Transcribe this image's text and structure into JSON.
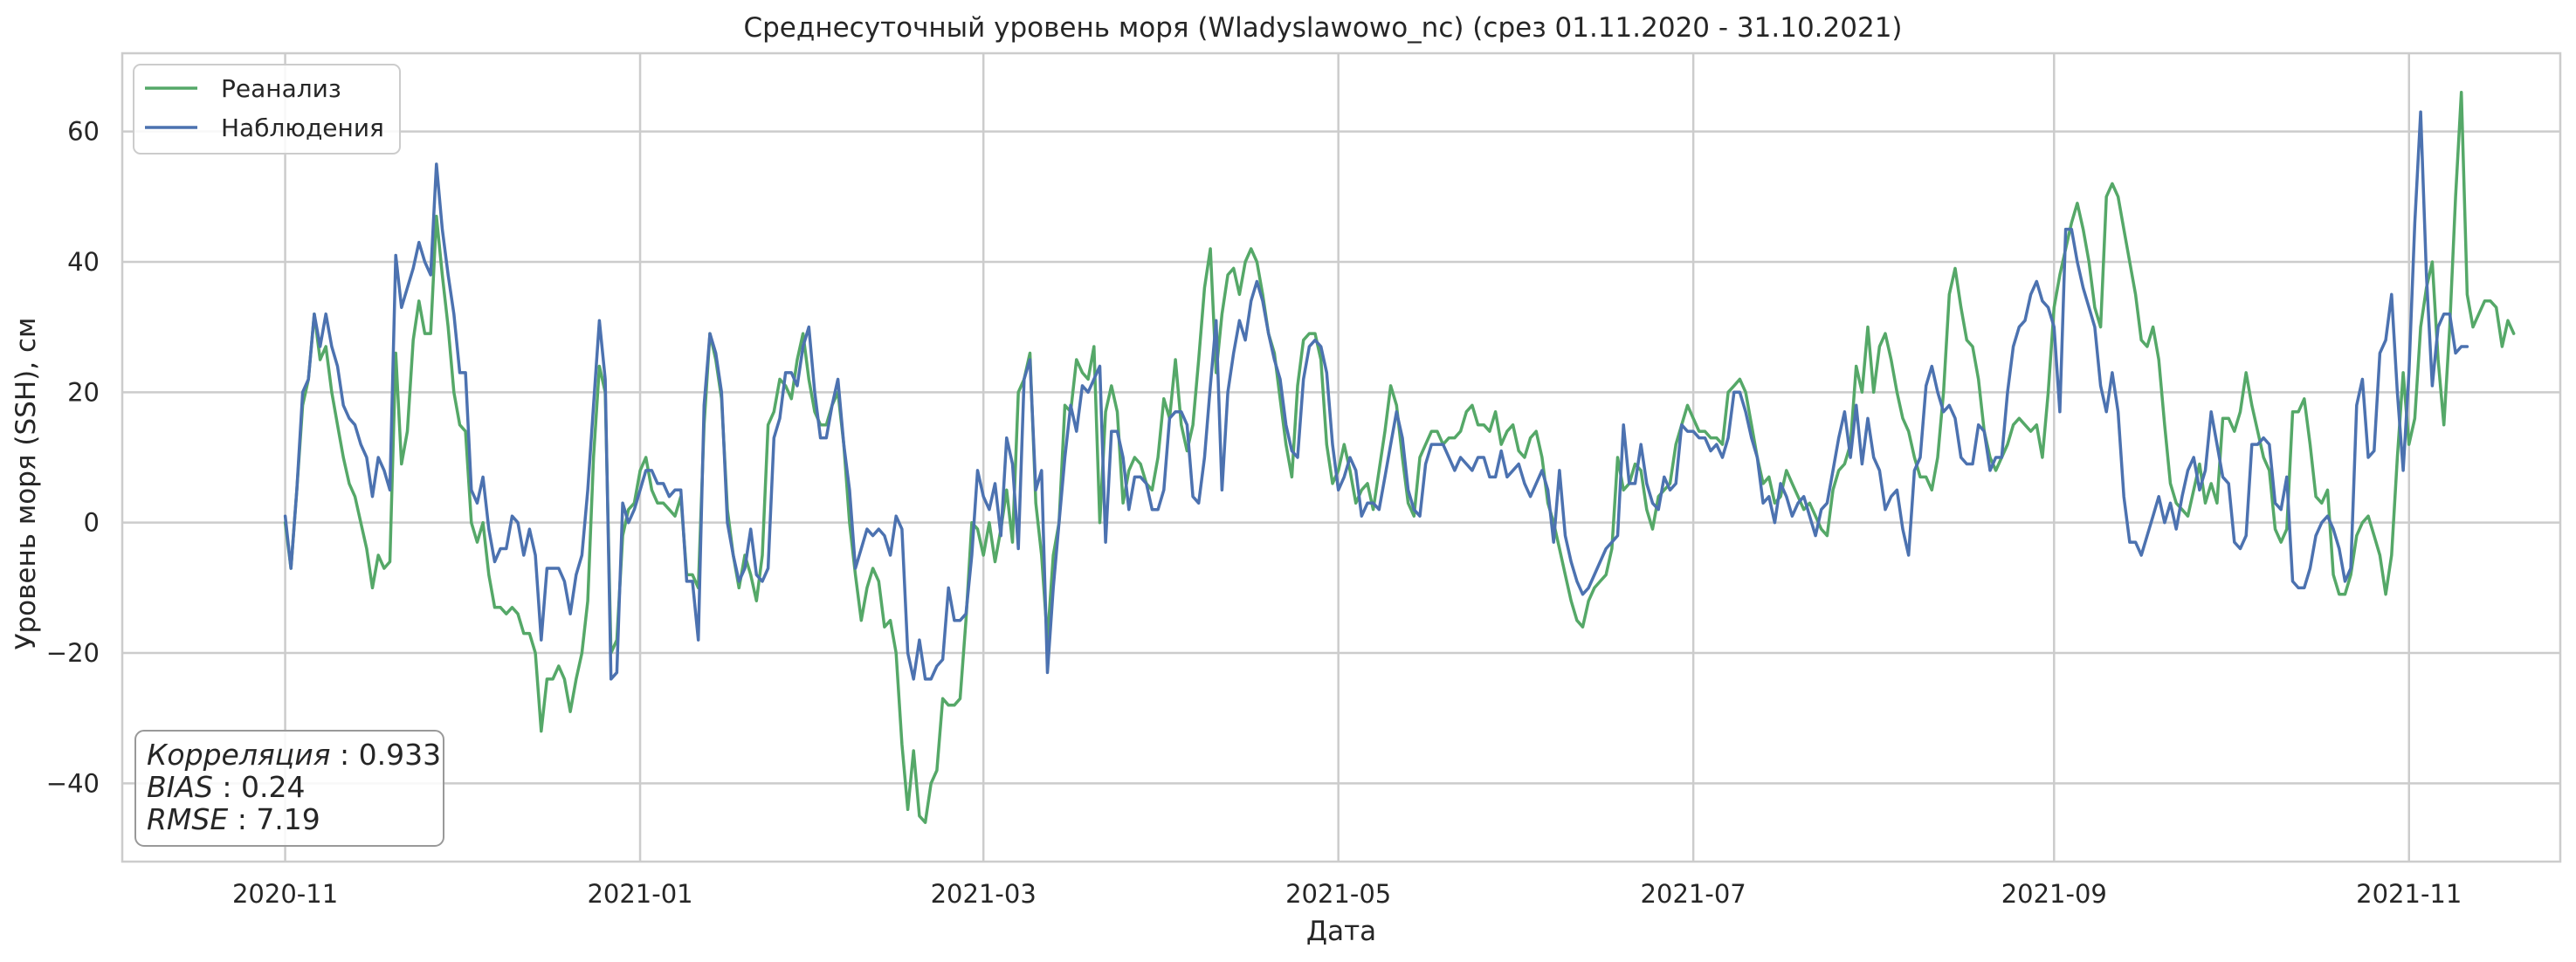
{
  "chart_data": {
    "type": "line",
    "title": "Среднесуточный уровень моря (Wladyslawowo_nc) (срез 01.11.2020 - 31.10.2021)",
    "xlabel": "Дата",
    "ylabel": "Уровень моря (SSH), см",
    "xlim": [
      "2020-10-04",
      "2021-11-27"
    ],
    "ylim": [
      -52,
      72
    ],
    "x_ticks": [
      "2020-11-01",
      "2021-01-01",
      "2021-03-01",
      "2021-05-01",
      "2021-07-01",
      "2021-09-01",
      "2021-11-01"
    ],
    "x_tick_labels": [
      "2020-11",
      "2021-01",
      "2021-03",
      "2021-05",
      "2021-07",
      "2021-09",
      "2021-11"
    ],
    "y_ticks": [
      -40,
      -20,
      0,
      20,
      40,
      60
    ],
    "y_tick_labels": [
      "−40",
      "−20",
      "0",
      "20",
      "40",
      "60"
    ],
    "grid": true,
    "legend_position": "top-left",
    "start_date": "2020-11-01",
    "series": [
      {
        "name": "Реанализ",
        "color": "#55a868",
        "values": [
          0,
          -7,
          5,
          18,
          22,
          32,
          25,
          27,
          20,
          15,
          10,
          6,
          4,
          0,
          -4,
          -10,
          -5,
          -7,
          -6,
          26,
          9,
          14,
          28,
          34,
          29,
          29,
          47,
          38,
          30,
          20,
          15,
          14,
          0,
          -3,
          0,
          -8,
          -13,
          -13,
          -14,
          -13,
          -14,
          -17,
          -17,
          -20,
          -32,
          -24,
          -24,
          -22,
          -24,
          -29,
          -24,
          -20,
          -12,
          10,
          24,
          20,
          -20,
          -18,
          -2,
          2,
          3,
          8,
          10,
          5,
          3,
          3,
          2,
          1,
          4,
          -8,
          -8,
          -10,
          15,
          29,
          25,
          19,
          2,
          -5,
          -10,
          -5,
          -8,
          -12,
          -5,
          15,
          17,
          22,
          21,
          19,
          25,
          29,
          22,
          17,
          15,
          15,
          18,
          20,
          12,
          0,
          -8,
          -15,
          -10,
          -7,
          -9,
          -16,
          -15,
          -20,
          -34,
          -44,
          -35,
          -45,
          -46,
          -40,
          -38,
          -27,
          -28,
          -28,
          -27,
          -15,
          0,
          -1,
          -5,
          0,
          -6,
          -1,
          5,
          -3,
          20,
          22,
          26,
          3,
          -5,
          -18,
          -5,
          0,
          18,
          17,
          25,
          23,
          22,
          27,
          0,
          17,
          21,
          17,
          3,
          8,
          10,
          9,
          6,
          5,
          10,
          19,
          16,
          25,
          15,
          11,
          15,
          25,
          36,
          42,
          23,
          32,
          38,
          39,
          35,
          40,
          42,
          40,
          35,
          29,
          26,
          19,
          12,
          7,
          21,
          28,
          29,
          29,
          25,
          12,
          6,
          8,
          12,
          8,
          3,
          5,
          6,
          2,
          8,
          14,
          21,
          18,
          10,
          3,
          1,
          10,
          12,
          14,
          14,
          12,
          13,
          13,
          14,
          17,
          18,
          15,
          15,
          14,
          17,
          12,
          14,
          15,
          11,
          10,
          13,
          14,
          10,
          3,
          0,
          -4,
          -8,
          -12,
          -15,
          -16,
          -12,
          -10,
          -9,
          -8,
          -4,
          10,
          5,
          6,
          9,
          8,
          2,
          -1,
          4,
          5,
          6,
          12,
          15,
          18,
          16,
          14,
          14,
          13,
          13,
          12,
          20,
          21,
          22,
          20,
          15,
          10,
          6,
          7,
          3,
          4,
          8,
          6,
          4,
          2,
          3,
          1,
          -1,
          -2,
          5,
          8,
          9,
          12,
          24,
          20,
          30,
          20,
          27,
          29,
          25,
          20,
          16,
          14,
          10,
          7,
          7,
          5,
          10,
          20,
          35,
          39,
          33,
          28,
          27,
          22,
          14,
          10,
          8,
          10,
          12,
          15,
          16,
          15,
          14,
          15,
          10,
          20,
          33,
          38,
          42,
          46,
          49,
          45,
          40,
          33,
          30,
          50,
          52,
          50,
          45,
          40,
          35,
          28,
          27,
          30,
          25,
          15,
          6,
          3,
          2,
          1,
          5,
          9,
          3,
          6,
          3,
          16,
          16,
          14,
          17,
          23,
          18,
          14,
          10,
          8,
          -1,
          -3,
          -1,
          17,
          17,
          19,
          12,
          4,
          3,
          5,
          -8,
          -11,
          -11,
          -8,
          -2,
          0,
          1,
          -2,
          -5,
          -11,
          -5,
          10,
          23,
          12,
          16,
          30,
          36,
          40,
          25,
          15,
          30,
          50,
          66,
          35,
          30,
          32,
          34,
          34,
          33,
          27,
          31,
          29
        ]
      },
      {
        "name": "Наблюдения",
        "color": "#4c72b0",
        "values": [
          1,
          -7,
          5,
          20,
          22,
          32,
          27,
          32,
          27,
          24,
          18,
          16,
          15,
          12,
          10,
          4,
          10,
          8,
          5,
          41,
          33,
          36,
          39,
          43,
          40,
          38,
          55,
          45,
          38,
          32,
          23,
          23,
          5,
          3,
          7,
          -1,
          -6,
          -4,
          -4,
          1,
          0,
          -5,
          -1,
          -5,
          -18,
          -7,
          -7,
          -7,
          -9,
          -14,
          -8,
          -5,
          5,
          18,
          31,
          22,
          -24,
          -23,
          3,
          0,
          2,
          5,
          8,
          8,
          6,
          6,
          4,
          5,
          5,
          -9,
          -9,
          -18,
          18,
          29,
          26,
          20,
          0,
          -5,
          -9,
          -7,
          -1,
          -8,
          -9,
          -7,
          13,
          16,
          23,
          23,
          21,
          27,
          30,
          20,
          13,
          13,
          18,
          22,
          12,
          5,
          -7,
          -4,
          -1,
          -2,
          -1,
          -2,
          -5,
          1,
          -1,
          -20,
          -24,
          -18,
          -24,
          -24,
          -22,
          -21,
          -10,
          -15,
          -15,
          -14,
          -5,
          8,
          4,
          2,
          6,
          -2,
          13,
          9,
          -4,
          22,
          25,
          5,
          8,
          -23,
          -10,
          0,
          10,
          18,
          14,
          21,
          20,
          22,
          24,
          -3,
          14,
          14,
          10,
          2,
          7,
          7,
          6,
          2,
          2,
          5,
          16,
          17,
          17,
          15,
          4,
          3,
          10,
          21,
          31,
          5,
          20,
          26,
          31,
          28,
          34,
          37,
          34,
          29,
          25,
          22,
          15,
          11,
          10,
          22,
          27,
          28,
          27,
          23,
          12,
          5,
          7,
          10,
          8,
          1,
          3,
          3,
          2,
          7,
          12,
          17,
          13,
          5,
          2,
          1,
          9,
          12,
          12,
          12,
          10,
          8,
          10,
          9,
          8,
          10,
          10,
          7,
          7,
          11,
          7,
          8,
          9,
          6,
          4,
          6,
          8,
          5,
          -3,
          8,
          -2,
          -6,
          -9,
          -11,
          -10,
          -8,
          -6,
          -4,
          -3,
          -2,
          15,
          6,
          6,
          12,
          6,
          3,
          2,
          7,
          5,
          6,
          15,
          14,
          14,
          13,
          13,
          11,
          12,
          10,
          13,
          20,
          20,
          17,
          13,
          10,
          3,
          4,
          0,
          6,
          4,
          1,
          3,
          4,
          1,
          -2,
          2,
          3,
          8,
          13,
          17,
          10,
          18,
          9,
          16,
          10,
          8,
          2,
          4,
          5,
          -1,
          -5,
          8,
          10,
          21,
          24,
          20,
          17,
          18,
          16,
          10,
          9,
          9,
          15,
          14,
          8,
          10,
          10,
          20,
          27,
          30,
          31,
          35,
          37,
          34,
          33,
          30,
          17,
          45,
          45,
          40,
          36,
          33,
          30,
          21,
          17,
          23,
          17,
          4,
          -3,
          -3,
          -5,
          -2,
          1,
          4,
          0,
          3,
          -1,
          4,
          8,
          10,
          5,
          8,
          17,
          12,
          7,
          6,
          -3,
          -4,
          -2,
          12,
          12,
          13,
          12,
          3,
          2,
          7,
          -9,
          -10,
          -10,
          -7,
          -2,
          0,
          1,
          -1,
          -4,
          -9,
          -7,
          18,
          22,
          10,
          11,
          26,
          28,
          35,
          20,
          8,
          23,
          46,
          63,
          38,
          21,
          30,
          32,
          32,
          26,
          27,
          27
        ]
      }
    ],
    "stats": [
      {
        "label": "Корреляция",
        "value": "0.933"
      },
      {
        "label": "BIAS",
        "value": "0.24"
      },
      {
        "label": "RMSE",
        "value": "7.19"
      }
    ]
  }
}
